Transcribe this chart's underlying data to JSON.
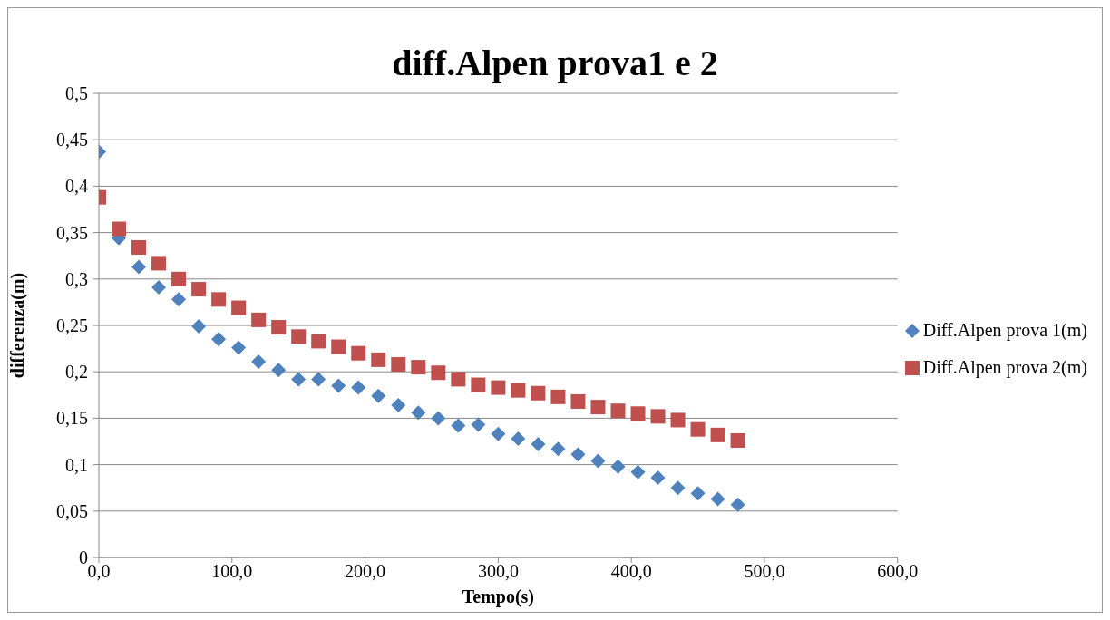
{
  "chart_data": {
    "type": "scatter",
    "title": "diff.Alpen prova1 e 2",
    "xlabel": "Tempo(s)",
    "ylabel": "differenza(m)",
    "x": [
      0,
      15,
      30,
      45,
      60,
      75,
      90,
      105,
      120,
      135,
      150,
      165,
      180,
      195,
      210,
      225,
      240,
      255,
      270,
      285,
      300,
      315,
      330,
      345,
      360,
      375,
      390,
      405,
      420,
      435,
      450,
      465,
      480
    ],
    "series": [
      {
        "name": "Diff.Alpen prova 1(m)",
        "color": "#4f81bd",
        "marker": "diamond",
        "values": [
          0.437,
          0.344,
          0.313,
          0.291,
          0.278,
          0.249,
          0.235,
          0.226,
          0.211,
          0.202,
          0.192,
          0.192,
          0.185,
          0.183,
          0.174,
          0.164,
          0.156,
          0.15,
          0.142,
          0.143,
          0.133,
          0.128,
          0.122,
          0.117,
          0.111,
          0.104,
          0.098,
          0.092,
          0.086,
          0.075,
          0.069,
          0.063,
          0.057
        ]
      },
      {
        "name": "Diff.Alpen prova 2(m)",
        "color": "#c0504d",
        "marker": "square",
        "values": [
          0.388,
          0.354,
          0.334,
          0.317,
          0.3,
          0.289,
          0.278,
          0.269,
          0.256,
          0.248,
          0.238,
          0.233,
          0.227,
          0.22,
          0.213,
          0.208,
          0.205,
          0.199,
          0.192,
          0.186,
          0.183,
          0.18,
          0.177,
          0.173,
          0.168,
          0.162,
          0.158,
          0.155,
          0.152,
          0.148,
          0.138,
          0.132,
          0.126
        ]
      }
    ],
    "xlim": [
      0,
      600
    ],
    "xticks": [
      {
        "value": 0,
        "label": "0,0"
      },
      {
        "value": 100,
        "label": "100,0"
      },
      {
        "value": 200,
        "label": "200,0"
      },
      {
        "value": 300,
        "label": "300,0"
      },
      {
        "value": 400,
        "label": "400,0"
      },
      {
        "value": 500,
        "label": "500,0"
      },
      {
        "value": 600,
        "label": "600,0"
      }
    ],
    "ylim": [
      0,
      0.5
    ],
    "yticks": [
      0,
      {
        "value": 0.05,
        "label": "0,05"
      },
      {
        "value": 0.1,
        "label": "0,1"
      },
      {
        "value": 0.15,
        "label": "0,15"
      },
      {
        "value": 0.2,
        "label": "0,2"
      },
      {
        "value": 0.25,
        "label": "0,25"
      },
      {
        "value": 0.3,
        "label": "0,3"
      },
      {
        "value": 0.35,
        "label": "0,35"
      },
      {
        "value": 0.4,
        "label": "0,4"
      },
      {
        "value": 0.45,
        "label": "0,45"
      },
      {
        "value": 0.5,
        "label": "0,5"
      }
    ],
    "grid": "y",
    "legend": "right"
  }
}
